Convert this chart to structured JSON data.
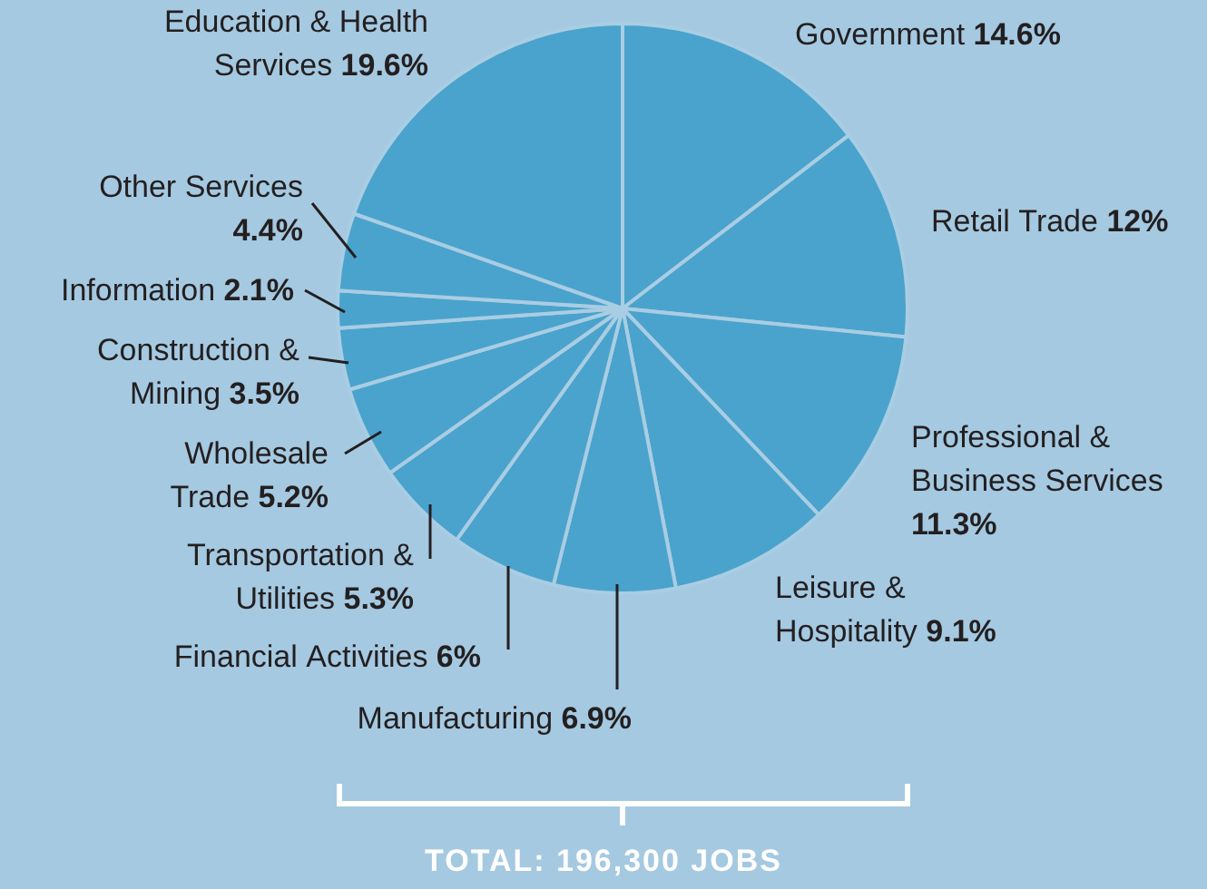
{
  "chart_data": {
    "type": "pie",
    "categories": [
      "Government",
      "Retail Trade",
      "Professional & Business Services",
      "Leisure & Hospitality",
      "Manufacturing",
      "Financial Activities",
      "Transportation & Utilities",
      "Wholesale Trade",
      "Construction & Mining",
      "Information",
      "Other Services",
      "Education & Health Services"
    ],
    "values": [
      14.6,
      12,
      11.3,
      9.1,
      6.9,
      6,
      5.3,
      5.2,
      3.5,
      2.1,
      4.4,
      19.6
    ],
    "value_labels": [
      "14.6%",
      "12%",
      "11.3%",
      "9.1%",
      "6.9%",
      "6%",
      "5.3%",
      "5.2%",
      "3.5%",
      "2.1%",
      "4.4%",
      "19.6%"
    ],
    "colors": [
      "#4aa3cc",
      "#4aa3cc",
      "#4aa3cc",
      "#4aa3cc",
      "#4aa3cc",
      "#4aa3cc",
      "#4aa3cc",
      "#4aa3cc",
      "#4aa3cc",
      "#4aa3cc",
      "#4aa3cc",
      "#4aa3cc"
    ],
    "annotations": [
      "TOTAL: 196,300 JOBS"
    ]
  }
}
